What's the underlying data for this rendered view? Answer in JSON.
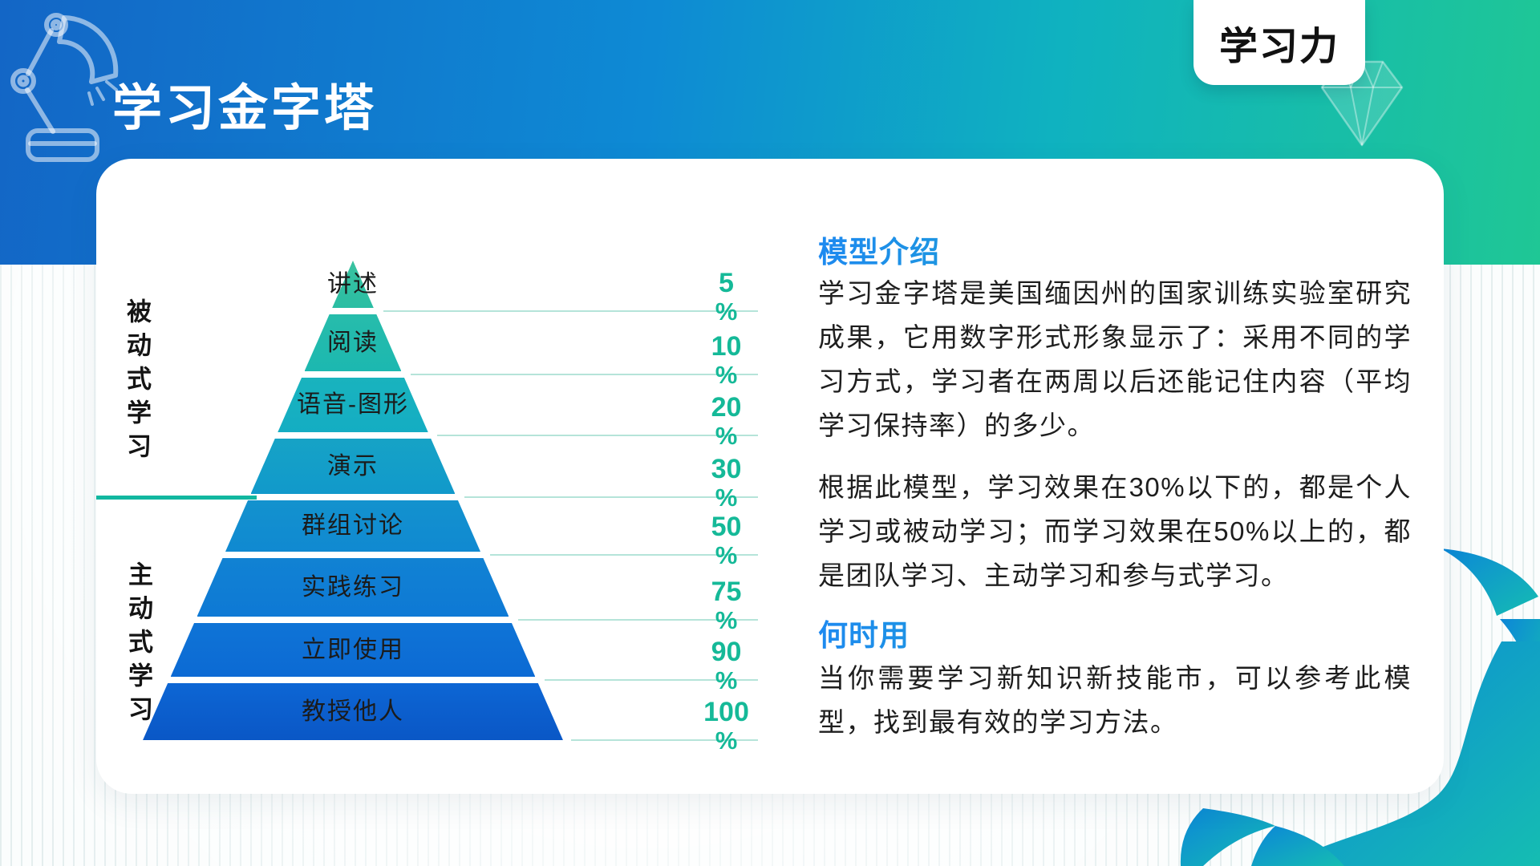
{
  "slide": {
    "title": "学习金字塔",
    "badge": "学习力"
  },
  "pyramid": {
    "passive_label": "被动式学习",
    "active_label": "主动式学习",
    "levels": [
      {
        "label": "讲述",
        "percent": "5",
        "color_top": "#3ac3a0",
        "color_bottom": "#2abda3"
      },
      {
        "label": "阅读",
        "percent": "10",
        "color_top": "#27bcab",
        "color_bottom": "#1cb8b0"
      },
      {
        "label": "语音-图形",
        "percent": "20",
        "color_top": "#19b3be",
        "color_bottom": "#14adc3"
      },
      {
        "label": "演示",
        "percent": "30",
        "color_top": "#16a3c6",
        "color_bottom": "#1199cb"
      },
      {
        "label": "群组讨论",
        "percent": "50",
        "color_top": "#1392ce",
        "color_bottom": "#1089d1"
      },
      {
        "label": "实践练习",
        "percent": "75",
        "color_top": "#1182d3",
        "color_bottom": "#0e79d5"
      },
      {
        "label": "立即使用",
        "percent": "90",
        "color_top": "#0f74d6",
        "color_bottom": "#0c6ad4"
      },
      {
        "label": "教授他人",
        "percent": "100",
        "color_top": "#0d66d4",
        "color_bottom": "#0a57c6"
      }
    ]
  },
  "panel": {
    "intro_heading": "模型介绍",
    "intro_p1": "学习金字塔是美国缅因州的国家训练实验室研究成果，它用数字形式形象显示了：采用不同的学习方式，学习者在两周以后还能记住内容（平均学习保持率）的多少。",
    "intro_p2": "根据此模型，学习效果在30%以下的，都是个人学习或被动学习；而学习效果在50%以上的，都是团队学习、主动学习和参与式学习。",
    "when_heading": "何时用",
    "when_p": "当你需要学习新知识新技能市，可以参考此模型，找到最有效的学习方法。"
  },
  "colors": {
    "percent_text": "#15b998",
    "separator_line": "#b5e4d9",
    "passive_active_divider": "#12b7a0",
    "banner_left": "#1366c6",
    "banner_right": "#1fc795"
  }
}
